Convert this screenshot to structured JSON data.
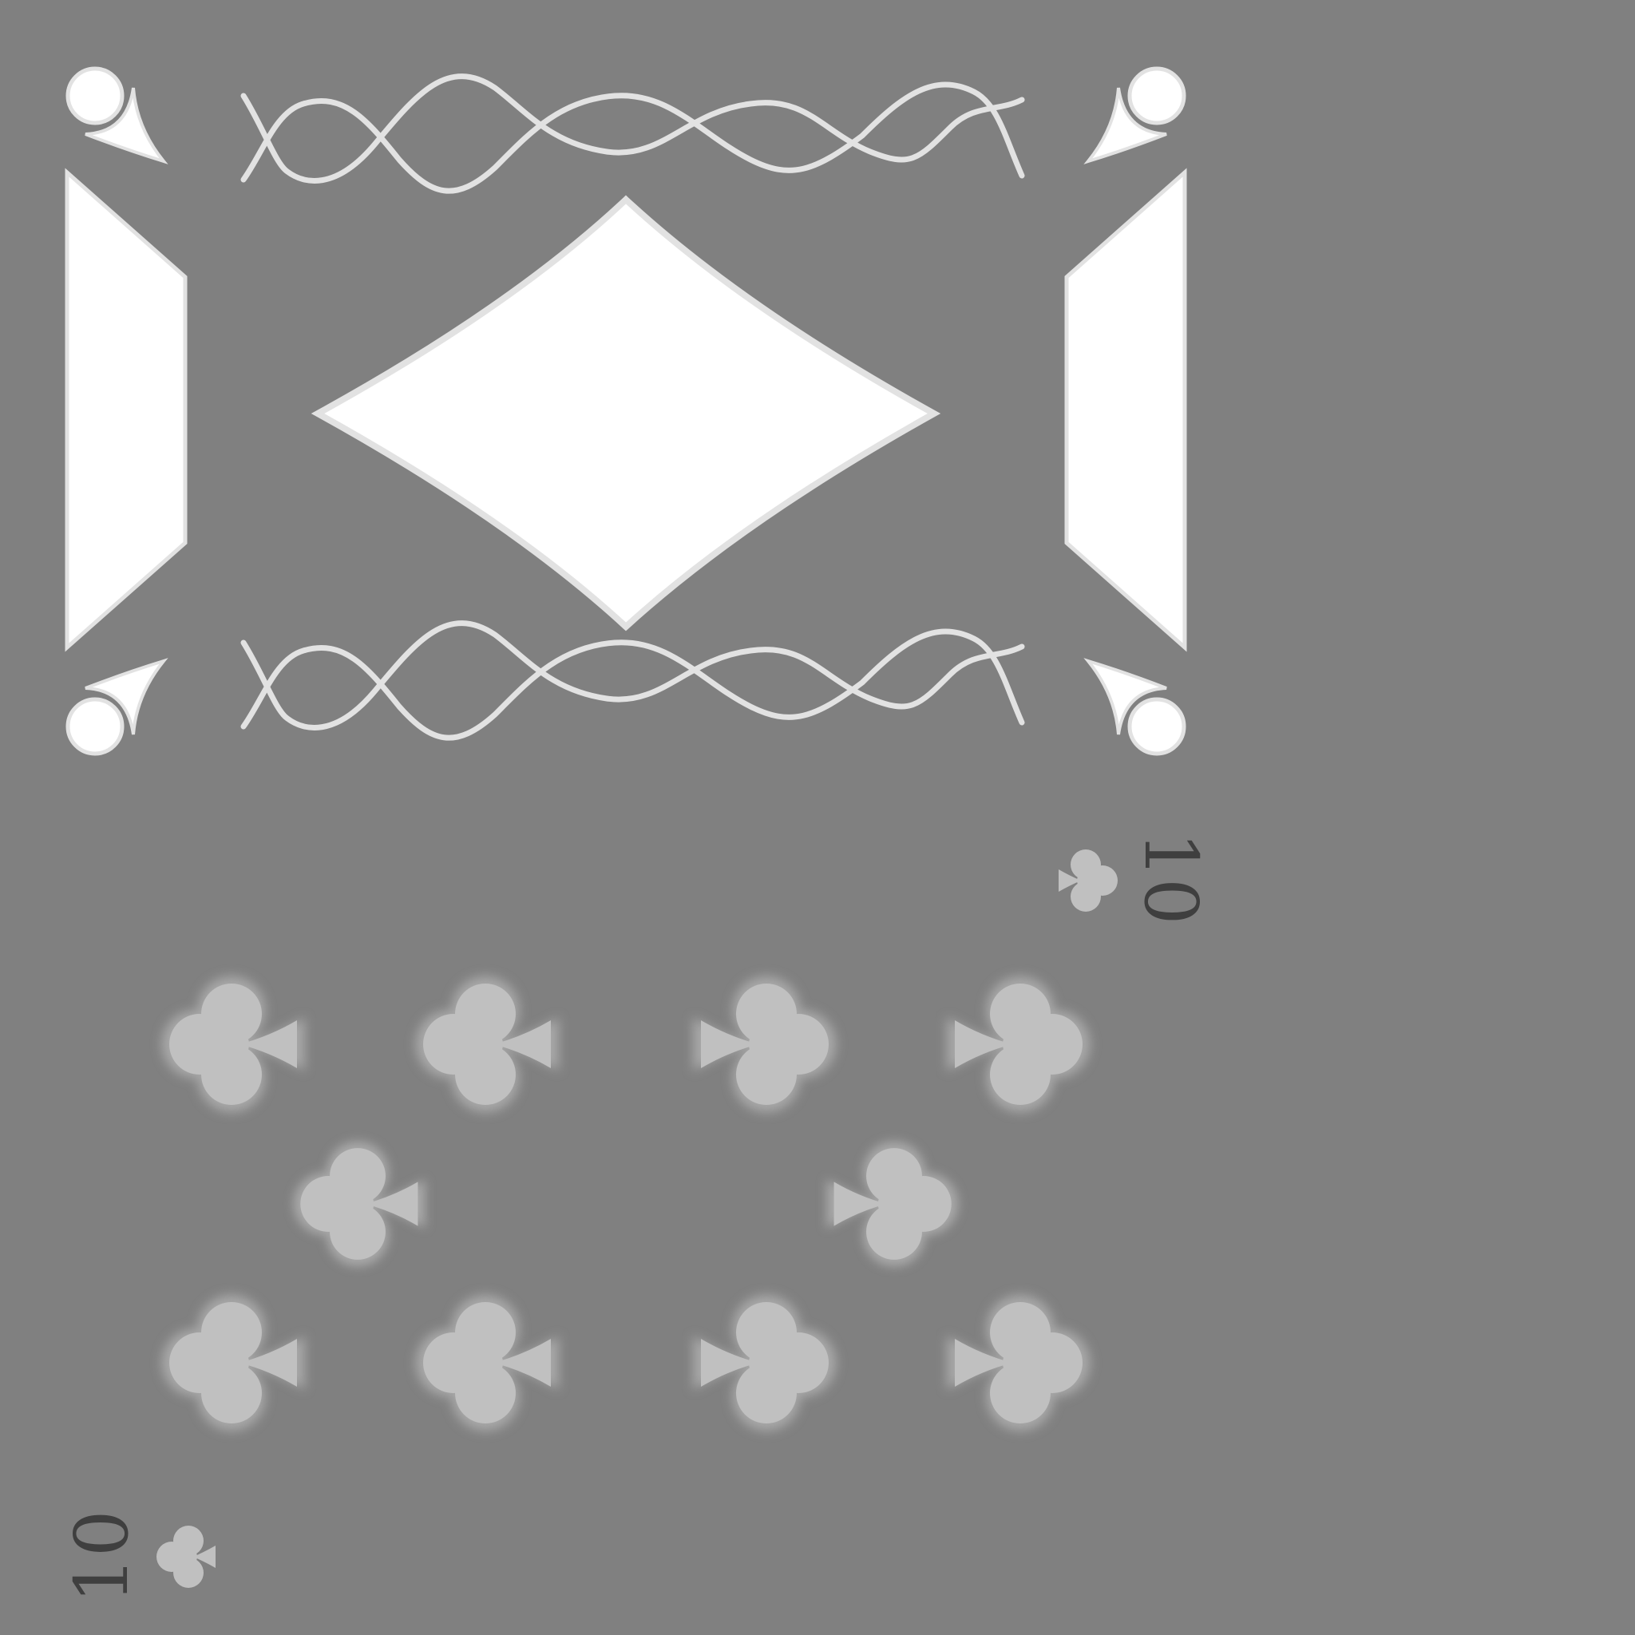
{
  "card": {
    "rank": "10",
    "suit": "clubs",
    "rank_top": "10",
    "rank_bottom": "10"
  },
  "icons": {
    "pip": "club-icon",
    "center": "diamond-icon",
    "corner": "circle-flourish-icon",
    "side": "side-panel-icon",
    "wave": "wave-ornament-icon"
  },
  "colors": {
    "background": "#808080",
    "ornament_fill": "#ffffff",
    "ornament_stroke": "#e2e2e2",
    "pip_fill": "#c0c0c0",
    "pip_glow": "#a8a8a8",
    "rank_text": "#3f3f3f"
  }
}
